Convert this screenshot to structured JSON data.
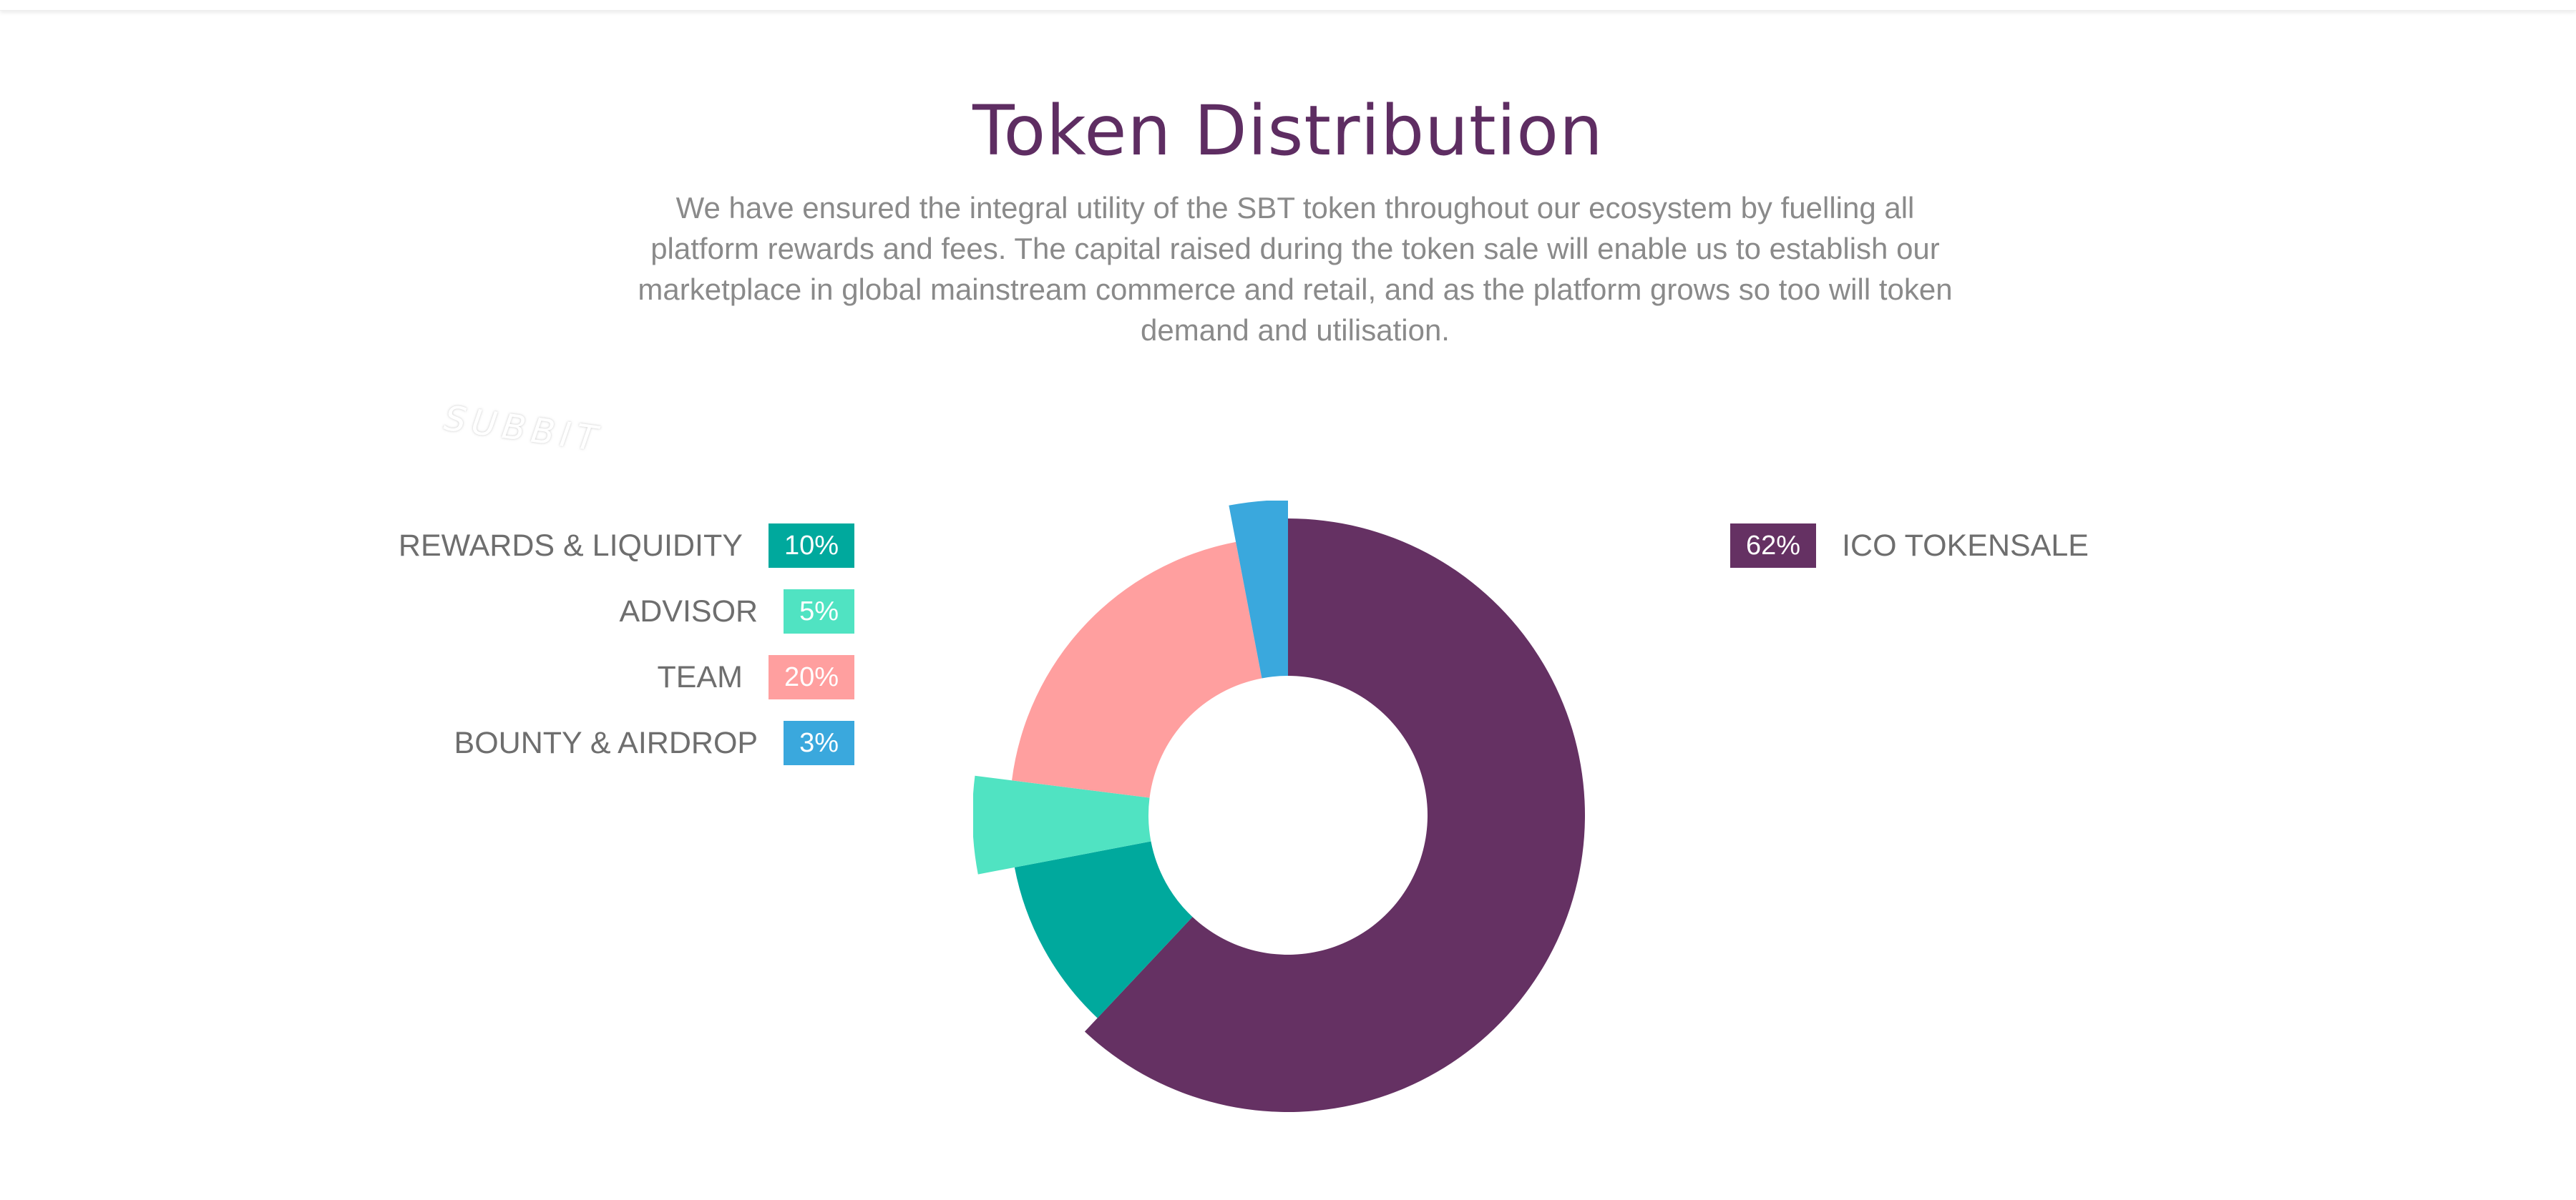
{
  "page": {
    "title": "Token Distribution",
    "description": "We have ensured the integral utility of the SBT token throughout our ecosystem by fuelling all platform rewards and fees. The capital raised during the token sale will enable us to establish our marketplace in global mainstream commerce and retail, and as the platform grows so too will token demand and utilisation.",
    "watermark": "SUBBIT"
  },
  "colors": {
    "title": "#5e2d62",
    "text": "#8a8a8a",
    "label": "#6e6e6e"
  },
  "chart_data": {
    "type": "pie",
    "style": "donut",
    "title": "Token Distribution",
    "legend_placement": "left-and-right",
    "slices": [
      {
        "name": "ICO TOKENSALE",
        "value": 62,
        "label": "62%",
        "color": "#653163",
        "emphasis": "inner"
      },
      {
        "name": "REWARDS & LIQUIDITY",
        "value": 10,
        "label": "10%",
        "color": "#00a99d",
        "emphasis": "none"
      },
      {
        "name": "ADVISOR",
        "value": 5,
        "label": "5%",
        "color": "#50e3c2",
        "emphasis": "outer"
      },
      {
        "name": "TEAM",
        "value": 20,
        "label": "20%",
        "color": "#ff9f9f",
        "emphasis": "none"
      },
      {
        "name": "BOUNTY & AIRDROP",
        "value": 3,
        "label": "3%",
        "color": "#3aa8dd",
        "emphasis": "outer"
      }
    ]
  }
}
